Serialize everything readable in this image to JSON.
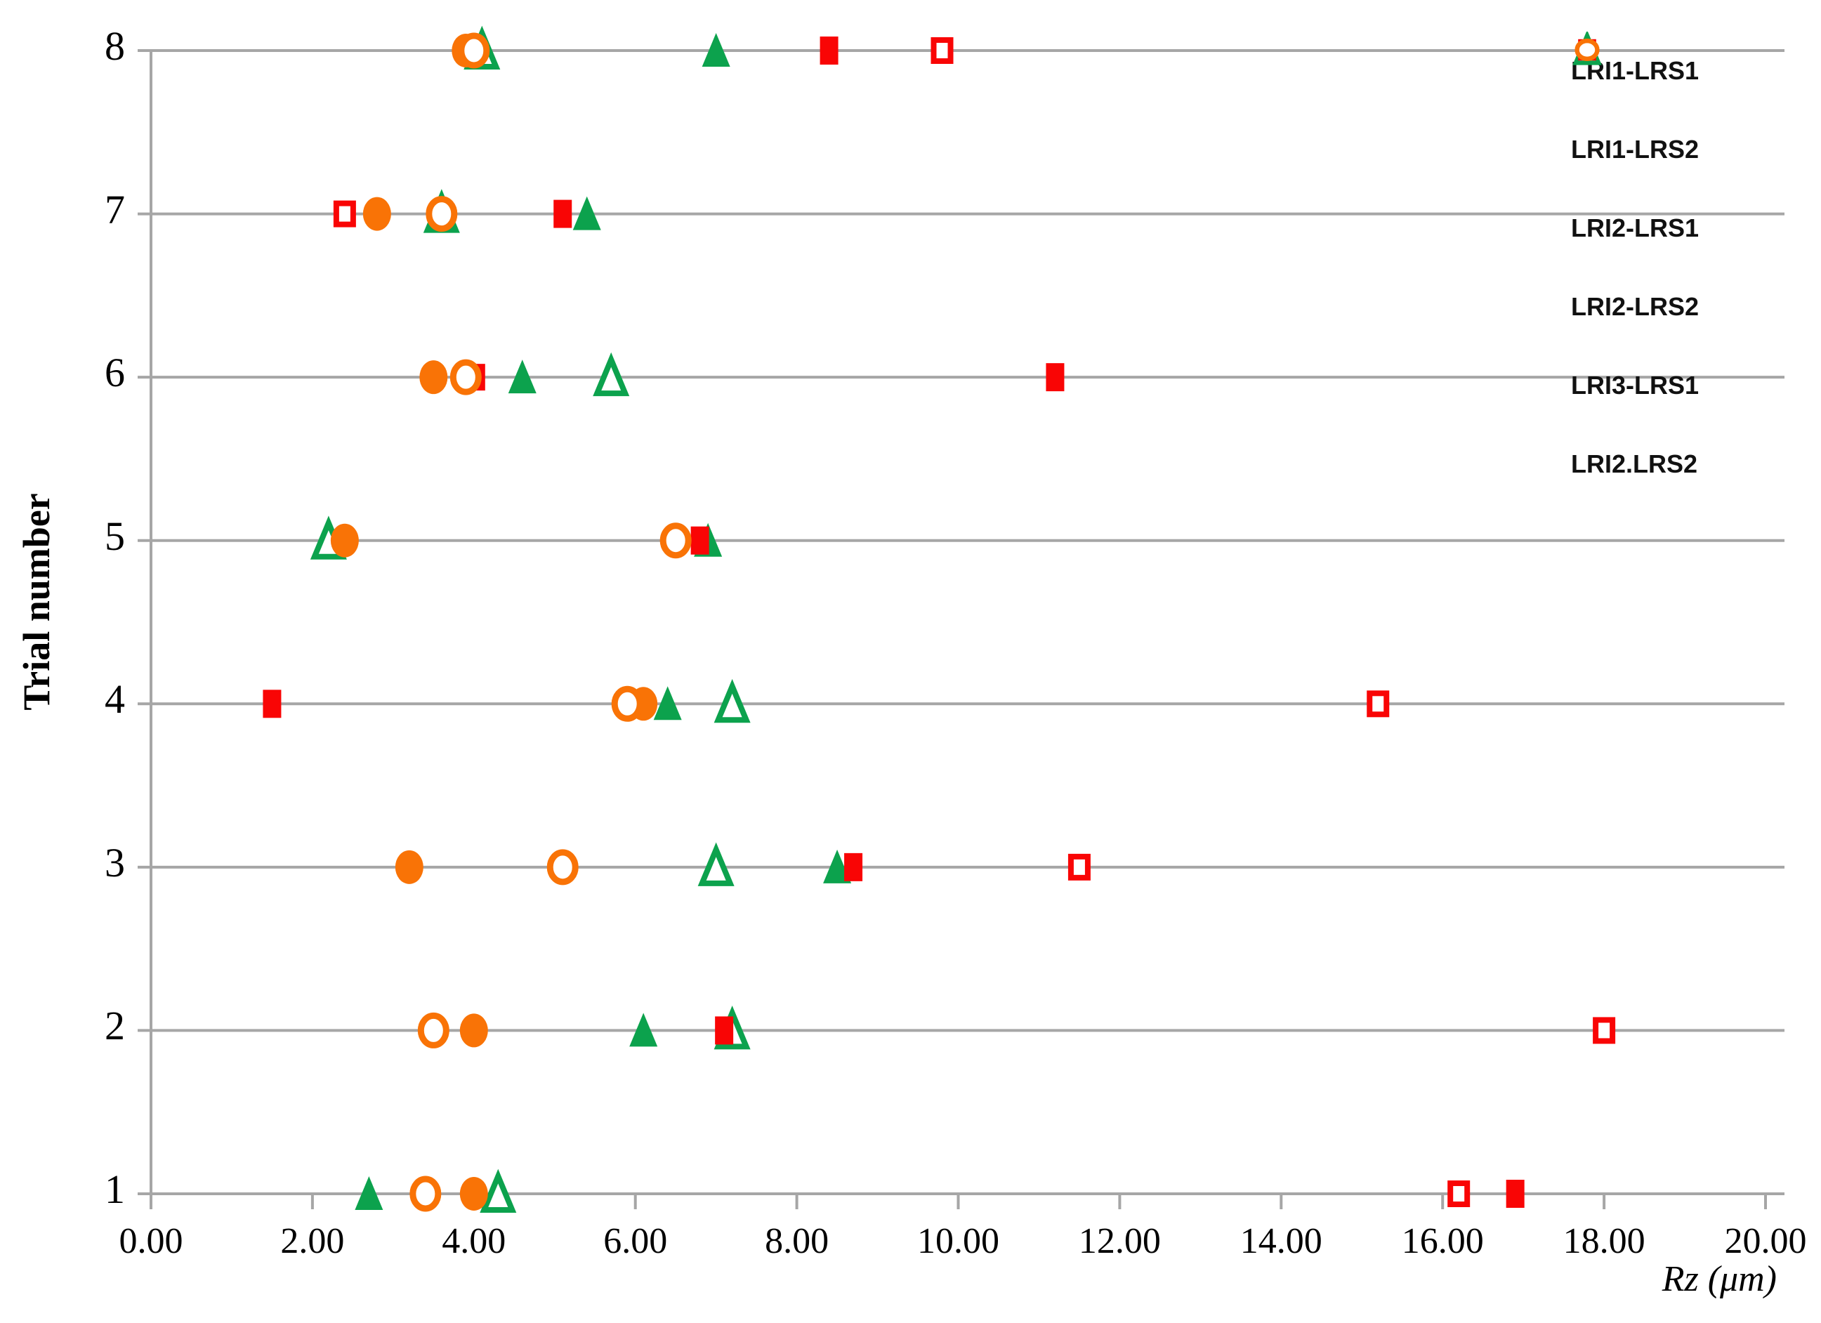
{
  "chart_data": {
    "type": "scatter",
    "title": "",
    "xlabel": "Rz (μm)",
    "ylabel": "Trial number",
    "xlim": [
      0,
      20
    ],
    "x_tick_step": 2,
    "x_tick_labels": [
      "0.00",
      "2.00",
      "4.00",
      "6.00",
      "8.00",
      "10.00",
      "12.00",
      "14.00",
      "16.00",
      "18.00",
      "20.00"
    ],
    "y_tick_labels": [
      "1",
      "2",
      "3",
      "4",
      "5",
      "6",
      "7",
      "8"
    ],
    "trials": [
      1,
      2,
      3,
      4,
      5,
      6,
      7,
      8
    ],
    "grid": "horizontal-only",
    "legend_position": "upper-right",
    "colors": {
      "green": "#0CA24D",
      "red": "#F90505",
      "orange": "#F97306",
      "gridline": "#A6A6A6",
      "text": "#000000"
    },
    "series": [
      {
        "name": "LRI1-LRS1",
        "marker": "triangle",
        "variant": "filled",
        "color": "#0CA24D",
        "values": [
          2.7,
          6.1,
          8.5,
          6.4,
          6.9,
          4.6,
          5.4,
          7.0
        ]
      },
      {
        "name": "LRI1-LRS2",
        "marker": "triangle",
        "variant": "open",
        "color": "#0CA24D",
        "values": [
          4.3,
          7.2,
          7.0,
          7.2,
          2.2,
          5.7,
          3.6,
          4.1
        ]
      },
      {
        "name": "LRI2-LRS1",
        "marker": "square",
        "variant": "filled",
        "color": "#F90505",
        "values": [
          16.9,
          7.1,
          8.7,
          1.5,
          6.8,
          11.2,
          5.1,
          8.4
        ]
      },
      {
        "name": "LRI2-LRS2",
        "marker": "square",
        "variant": "open",
        "color": "#F90505",
        "values": [
          16.2,
          18.0,
          11.5,
          15.2,
          null,
          4.0,
          2.4,
          9.8
        ]
      },
      {
        "name": "LRI3-LRS1",
        "marker": "circle",
        "variant": "filled",
        "color": "#F97306",
        "values": [
          4.0,
          4.0,
          3.2,
          6.1,
          2.4,
          3.5,
          2.8,
          3.9
        ]
      },
      {
        "name": "LRI2.LRS2",
        "marker": "circle",
        "variant": "open",
        "color": "#F97306",
        "values": [
          3.4,
          3.5,
          5.1,
          5.9,
          6.5,
          3.9,
          3.6,
          4.0
        ]
      }
    ]
  }
}
